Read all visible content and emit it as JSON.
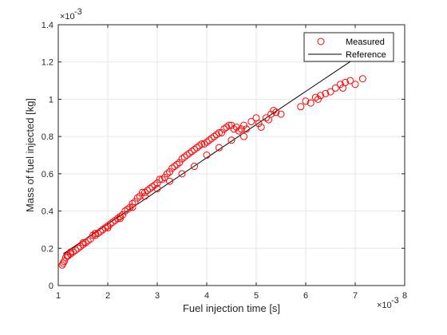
{
  "chart_data": {
    "type": "scatter",
    "title": "",
    "xlabel": "Fuel injection time [s]",
    "ylabel": "Mass of fuel injected [kg]",
    "x_exponent_label": "×10",
    "x_exponent_power": "-3",
    "y_exponent_label": "×10",
    "y_exponent_power": "-3",
    "xlim": [
      1,
      8
    ],
    "ylim": [
      0,
      1.4
    ],
    "xticks": [
      1,
      2,
      3,
      4,
      5,
      6,
      7,
      8
    ],
    "yticks": [
      0,
      0.2,
      0.4,
      0.6,
      0.8,
      1,
      1.2,
      1.4
    ],
    "xtick_labels": [
      "1",
      "2",
      "3",
      "4",
      "5",
      "6",
      "7",
      "8"
    ],
    "ytick_labels": [
      "0",
      "0.2",
      "0.4",
      "0.6",
      "0.8",
      "1",
      "1.2",
      "1.4"
    ],
    "grid": true,
    "legend_position": "top-right",
    "colors": {
      "measured": "#ff0000",
      "reference": "#000000",
      "grid": "#e6e6e6"
    },
    "series": [
      {
        "name": "Measured",
        "type": "scatter",
        "marker": "open-circle",
        "x": [
          1.08,
          1.1,
          1.12,
          1.15,
          1.18,
          1.2,
          1.25,
          1.3,
          1.35,
          1.4,
          1.45,
          1.5,
          1.55,
          1.6,
          1.65,
          1.7,
          1.75,
          1.8,
          1.85,
          1.9,
          1.95,
          2.0,
          2.05,
          2.1,
          2.15,
          2.2,
          2.25,
          2.3,
          2.35,
          2.4,
          2.45,
          2.5,
          2.55,
          2.6,
          2.65,
          2.7,
          2.75,
          2.8,
          2.85,
          2.9,
          2.95,
          3.0,
          3.05,
          3.1,
          3.15,
          3.2,
          3.25,
          3.3,
          3.35,
          3.4,
          3.45,
          3.5,
          3.55,
          3.6,
          3.65,
          3.7,
          3.75,
          3.8,
          3.85,
          3.9,
          3.95,
          4.0,
          4.05,
          4.1,
          4.15,
          4.2,
          4.25,
          4.3,
          4.35,
          4.4,
          4.45,
          4.5,
          4.55,
          4.6,
          4.65,
          4.7,
          4.75,
          4.8,
          4.9,
          5.0,
          5.05,
          5.1,
          5.2,
          5.3,
          5.35,
          5.4,
          5.5,
          5.9,
          6.0,
          6.1,
          6.2,
          6.3,
          6.4,
          6.5,
          6.6,
          6.7,
          6.8,
          6.9,
          7.0,
          7.15,
          1.25,
          1.5,
          1.75,
          2.0,
          2.25,
          2.5,
          2.75,
          3.0,
          3.25,
          3.5,
          3.75,
          4.0,
          4.25,
          4.5,
          4.75,
          5.25,
          6.25,
          6.75
        ],
        "y": [
          0.11,
          0.12,
          0.13,
          0.15,
          0.16,
          0.16,
          0.17,
          0.18,
          0.19,
          0.2,
          0.21,
          0.22,
          0.23,
          0.24,
          0.25,
          0.27,
          0.28,
          0.28,
          0.29,
          0.3,
          0.31,
          0.32,
          0.33,
          0.34,
          0.35,
          0.36,
          0.37,
          0.38,
          0.4,
          0.41,
          0.42,
          0.44,
          0.45,
          0.47,
          0.48,
          0.5,
          0.5,
          0.51,
          0.52,
          0.53,
          0.54,
          0.55,
          0.57,
          0.57,
          0.58,
          0.6,
          0.61,
          0.63,
          0.64,
          0.65,
          0.66,
          0.68,
          0.69,
          0.7,
          0.71,
          0.72,
          0.73,
          0.74,
          0.75,
          0.76,
          0.76,
          0.77,
          0.78,
          0.79,
          0.8,
          0.81,
          0.82,
          0.82,
          0.84,
          0.85,
          0.86,
          0.86,
          0.84,
          0.85,
          0.83,
          0.84,
          0.86,
          0.84,
          0.88,
          0.9,
          0.87,
          0.85,
          0.9,
          0.92,
          0.94,
          0.93,
          0.92,
          0.96,
          0.99,
          0.98,
          1.01,
          1.02,
          1.03,
          1.04,
          1.06,
          1.08,
          1.09,
          1.1,
          1.08,
          1.11,
          0.18,
          0.23,
          0.27,
          0.31,
          0.36,
          0.42,
          0.48,
          0.52,
          0.56,
          0.6,
          0.64,
          0.7,
          0.74,
          0.78,
          0.8,
          0.89,
          1.0,
          1.06
        ]
      },
      {
        "name": "Reference",
        "type": "line",
        "x": [
          1.1,
          7.0
        ],
        "y": [
          0.17,
          1.22
        ]
      }
    ]
  }
}
